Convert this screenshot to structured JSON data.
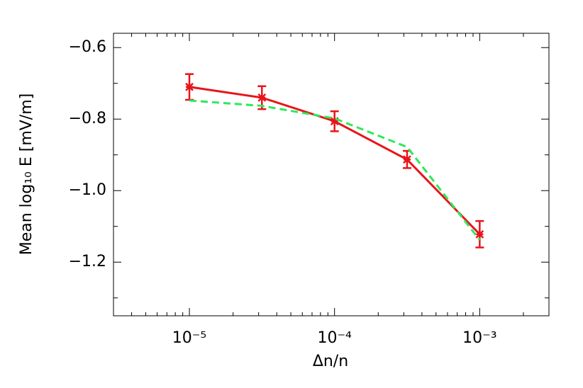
{
  "chart_data": {
    "type": "line",
    "x_label": "Δn/n",
    "y_label": "Mean log₁₀ E [mV/m]",
    "x": [
      1e-05,
      3.16e-05,
      0.0001,
      0.000316,
      0.001
    ],
    "x_scale": "log",
    "xlim": [
      3e-06,
      0.003
    ],
    "xticks": [
      {
        "value": 1e-05,
        "label": "10⁻⁵"
      },
      {
        "value": 0.0001,
        "label": "10⁻⁴"
      },
      {
        "value": 0.001,
        "label": "10⁻³"
      }
    ],
    "xminorticks": [
      4e-06,
      5e-06,
      6e-06,
      7e-06,
      8e-06,
      9e-06,
      2e-05,
      3e-05,
      4e-05,
      5e-05,
      6e-05,
      7e-05,
      8e-05,
      9e-05,
      0.0002,
      0.0003,
      0.0004,
      0.0005,
      0.0006,
      0.0007,
      0.0008,
      0.0009,
      0.002
    ],
    "ylim": [
      -1.35,
      -0.56
    ],
    "yticks": [
      {
        "value": -1.2,
        "label": "−1.2"
      },
      {
        "value": -1.0,
        "label": "−1.0"
      },
      {
        "value": -0.8,
        "label": "−0.8"
      },
      {
        "value": -0.6,
        "label": "−0.6"
      }
    ],
    "yminorticks": [
      -1.3,
      -1.1,
      -0.9,
      -0.7
    ],
    "series": [
      {
        "color": "#e8141a",
        "line_style": "solid",
        "marker": "asterisk",
        "values": [
          -0.71,
          -0.74,
          -0.806,
          -0.913,
          -1.122
        ],
        "errors": [
          0.036,
          0.032,
          0.028,
          0.024,
          0.037
        ]
      },
      {
        "color": "#2ee85a",
        "line_style": "dashed",
        "values": [
          -0.748,
          -0.763,
          -0.798,
          -0.878,
          -1.138
        ]
      }
    ]
  }
}
